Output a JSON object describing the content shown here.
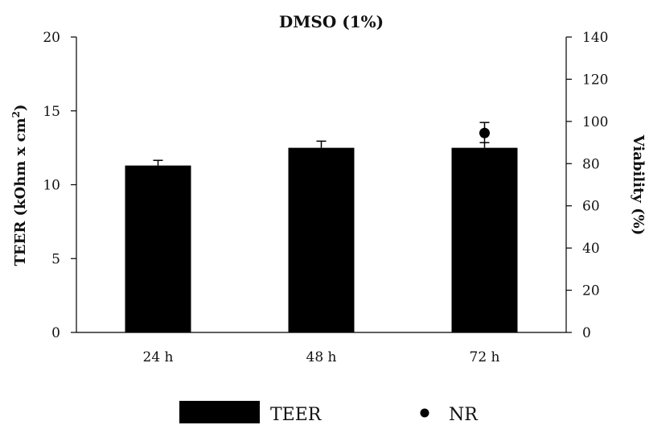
{
  "chart_data": {
    "type": "bar",
    "title": "DMSO (1%)",
    "categories": [
      "24 h",
      "48 h",
      "72 h"
    ],
    "series": [
      {
        "name": "TEER",
        "kind": "bar",
        "axis": "left",
        "values": [
          11.3,
          12.5,
          12.5
        ],
        "error": [
          0.35,
          0.45,
          0.35
        ],
        "color": "#000000"
      },
      {
        "name": "NR",
        "kind": "point",
        "axis": "right",
        "values": [
          null,
          null,
          94.5
        ],
        "error": [
          null,
          null,
          5
        ],
        "color": "#000000"
      }
    ],
    "ylabel": "TEER (kOhm x cm²)",
    "ylabel_base": "TEER (kOhm x cm",
    "ylabel_sup": "2",
    "ylabel_close": ")",
    "ylim": [
      0,
      20
    ],
    "yticks": [
      "0",
      "5",
      "10",
      "15",
      "20"
    ],
    "y2label": "Viability (%)",
    "y2lim": [
      0,
      140
    ],
    "y2ticks": [
      "0",
      "20",
      "40",
      "60",
      "80",
      "100",
      "120",
      "140"
    ],
    "grid": false,
    "legend_position": "bottom"
  }
}
